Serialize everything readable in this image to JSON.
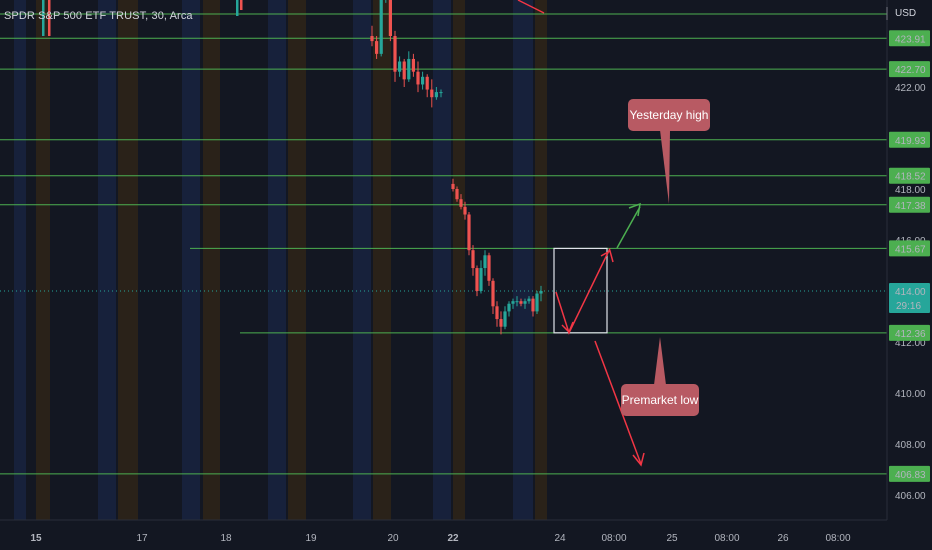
{
  "header": {
    "symbol_title": "SPDR S&P 500 ETF TRUST, 30, Arca",
    "currency": "USD"
  },
  "price_axis": {
    "plain_ticks": [
      "422.00",
      "418.00",
      "416.00",
      "412.00",
      "410.00",
      "408.00",
      "406.00"
    ],
    "level_labels": [
      "423.91",
      "422.70",
      "419.93",
      "418.52",
      "417.38",
      "415.67",
      "412.36",
      "406.83"
    ],
    "current_price": "414.00",
    "countdown": "29:16"
  },
  "time_axis": {
    "labels": [
      "15",
      "17",
      "18",
      "19",
      "20",
      "22",
      "24",
      "08:00",
      "25",
      "08:00",
      "26",
      "08:00"
    ],
    "bold_labels": [
      "15",
      "22"
    ]
  },
  "annotations": {
    "yesterday_high": "Yesterday high",
    "premarket_low": "Premarket low"
  },
  "colors": {
    "background": "#131722",
    "level_line": "#4caf50",
    "level_label_bg": "#4caf50",
    "callout_bg": "#b85a63",
    "arrow_up": "#4caf50",
    "arrow_down": "#f23645",
    "candle_up": "#26a69a",
    "candle_down": "#ef5350",
    "session_blue": "#17213b",
    "session_orange": "#2a2219"
  },
  "chart_data": {
    "type": "candlestick",
    "title": "SPDR S&P 500 ETF TRUST, 30, Arca",
    "ylim": [
      405.5,
      426.2
    ],
    "x_categories": [
      "15",
      "17",
      "18",
      "19",
      "20",
      "22",
      "24",
      "08:00",
      "25",
      "08:00",
      "26",
      "08:00"
    ],
    "horizontal_levels": [
      423.91,
      422.7,
      419.93,
      418.52,
      417.38,
      415.67,
      412.36,
      406.83
    ],
    "current_price": 414.0,
    "candles_day20": [
      [
        424.0,
        424.4,
        423.6,
        423.8
      ],
      [
        423.8,
        424.0,
        423.1,
        423.3
      ],
      [
        423.3,
        425.8,
        423.2,
        425.6
      ],
      [
        425.6,
        426.1,
        425.3,
        425.8
      ],
      [
        425.8,
        426.0,
        423.8,
        424.0
      ],
      [
        424.0,
        424.2,
        422.2,
        422.6
      ],
      [
        422.6,
        423.2,
        422.4,
        423.0
      ],
      [
        423.0,
        423.1,
        422.0,
        422.3
      ],
      [
        422.3,
        423.4,
        422.2,
        423.1
      ],
      [
        423.1,
        423.3,
        422.4,
        422.6
      ],
      [
        422.6,
        423.0,
        421.8,
        422.1
      ],
      [
        422.1,
        422.6,
        421.9,
        422.4
      ],
      [
        422.4,
        422.5,
        421.6,
        421.9
      ],
      [
        421.9,
        422.3,
        421.2,
        421.6
      ],
      [
        421.6,
        422.0,
        421.5,
        421.8
      ],
      [
        421.8,
        421.9,
        421.6,
        421.8
      ]
    ],
    "candles_day22": [
      [
        418.2,
        418.4,
        417.9,
        418.0
      ],
      [
        418.0,
        418.1,
        417.5,
        417.6
      ],
      [
        417.6,
        417.8,
        417.2,
        417.3
      ],
      [
        417.3,
        417.5,
        416.8,
        417.0
      ],
      [
        417.0,
        417.1,
        415.4,
        415.6
      ],
      [
        415.6,
        415.8,
        414.6,
        414.9
      ],
      [
        414.9,
        415.0,
        413.8,
        414.0
      ],
      [
        414.0,
        415.2,
        413.9,
        414.9
      ],
      [
        414.9,
        415.6,
        414.6,
        415.4
      ],
      [
        415.4,
        415.5,
        414.2,
        414.4
      ],
      [
        414.4,
        414.5,
        413.1,
        413.4
      ],
      [
        413.4,
        413.6,
        412.6,
        412.9
      ],
      [
        412.9,
        413.2,
        412.3,
        412.6
      ],
      [
        412.6,
        413.4,
        412.5,
        413.2
      ],
      [
        413.2,
        413.6,
        413.0,
        413.5
      ],
      [
        413.5,
        413.7,
        413.3,
        413.6
      ],
      [
        413.6,
        413.8,
        413.4,
        413.6
      ],
      [
        413.6,
        413.7,
        413.4,
        413.5
      ],
      [
        413.5,
        413.7,
        413.3,
        413.6
      ],
      [
        413.6,
        413.8,
        413.5,
        413.7
      ],
      [
        413.7,
        413.8,
        413.0,
        413.2
      ],
      [
        413.2,
        414.0,
        413.1,
        413.9
      ],
      [
        413.9,
        414.2,
        413.6,
        414.0
      ]
    ],
    "projection": {
      "box_price_range": [
        412.36,
        415.67
      ],
      "path_up": [
        414.0,
        412.36,
        415.67
      ],
      "arrow_up_target": 417.38,
      "arrow_down_target": 407.4
    },
    "grid": false,
    "legend": "none"
  }
}
